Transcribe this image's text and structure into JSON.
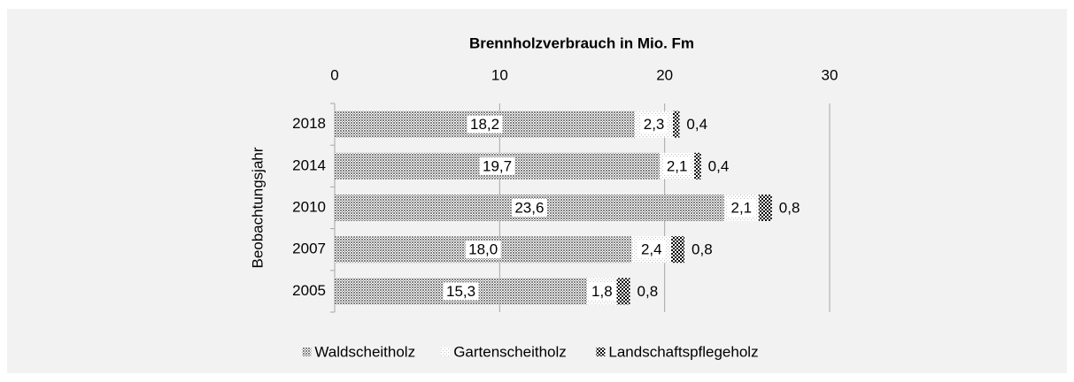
{
  "chart_data": {
    "type": "stacked-bar-horizontal",
    "title": "Brennholzverbrauch in Mio. Fm",
    "y_label": "Beobachtungsjahr",
    "categories": [
      "2018",
      "2014",
      "2010",
      "2007",
      "2005"
    ],
    "series": [
      {
        "name": "Waldscheitholz",
        "color": "#7f7f7f",
        "values": [
          18.2,
          19.7,
          23.6,
          18.0,
          15.3
        ],
        "value_labels": [
          "18,2",
          "19,7",
          "23,6",
          "18,0",
          "15,3"
        ]
      },
      {
        "name": "Gartenscheitholz",
        "color": "#bfbfbf",
        "values": [
          2.3,
          2.1,
          2.1,
          2.4,
          1.8
        ],
        "value_labels": [
          "2,3",
          "2,1",
          "2,1",
          "2,4",
          "1,8"
        ]
      },
      {
        "name": "Landschaftspflegeholz",
        "color": "#000000",
        "values": [
          0.4,
          0.4,
          0.8,
          0.8,
          0.8
        ],
        "value_labels": [
          "0,4",
          "0,4",
          "0,8",
          "0,8",
          "0,8"
        ]
      }
    ],
    "xlim": [
      0,
      30
    ],
    "xticks": [
      0,
      10,
      20,
      30
    ],
    "grid": true,
    "legend": "bottom"
  }
}
